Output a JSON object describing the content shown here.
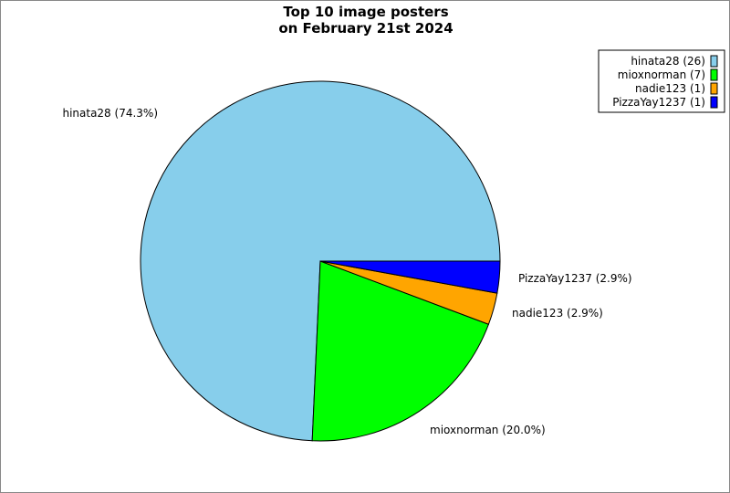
{
  "chart_data": {
    "type": "pie",
    "title": [
      "Top 10 image posters",
      "on February 21st 2024"
    ],
    "slices": [
      {
        "label": "hinata28",
        "value": 26,
        "percent": "74.3%",
        "color": "#87ceeb"
      },
      {
        "label": "mioxnorman",
        "value": 7,
        "percent": "20.0%",
        "color": "#00ff00"
      },
      {
        "label": "nadie123",
        "value": 1,
        "percent": "2.9%",
        "color": "#ffa500"
      },
      {
        "label": "PizzaYay1237",
        "value": 1,
        "percent": "2.9%",
        "color": "#0000ff"
      }
    ],
    "slice_labels": [
      "hinata28 (74.3%)",
      "mioxnorman (20.0%)",
      "nadie123 (2.9%)",
      "PizzaYay1237 (2.9%)"
    ],
    "legend_entries": [
      "hinata28 (26)",
      "mioxnorman (7)",
      "nadie123 (1)",
      "PizzaYay1237 (1)"
    ],
    "legend_placement": "top-right",
    "start_angle_deg": 0,
    "direction": "counterclockwise"
  }
}
